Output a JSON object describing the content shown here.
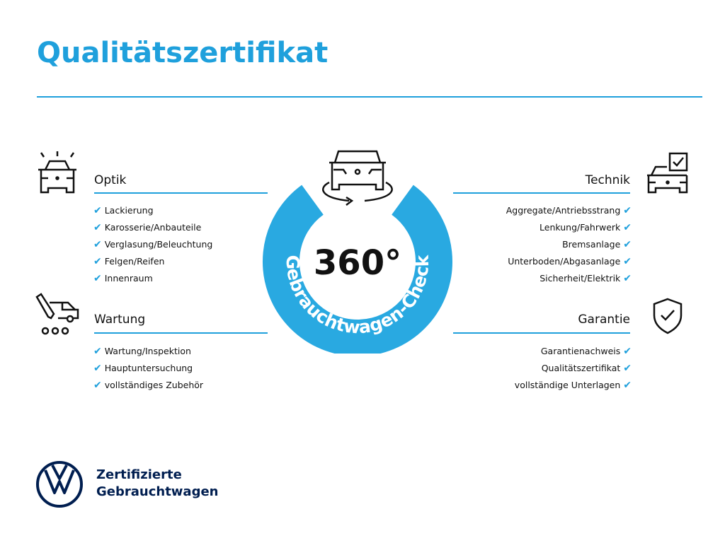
{
  "title": "Qualitätszertifikat",
  "colors": {
    "accent": "#1fa0dc",
    "brand_dark": "#001e50"
  },
  "center": {
    "number": "360°",
    "ring_text": "Gebrauchtwagen-Check",
    "icon": "car-rotate-icon"
  },
  "sections": {
    "optik": {
      "heading": "Optik",
      "icon": "car-lights-icon",
      "items": [
        "Lackierung",
        "Karosserie/Anbauteile",
        "Verglasung/Beleuchtung",
        "Felgen/Reifen",
        "Innenraum"
      ]
    },
    "wartung": {
      "heading": "Wartung",
      "icon": "service-van-tool-icon",
      "items": [
        "Wartung/Inspektion",
        "Hauptuntersuchung",
        "vollständiges Zubehör"
      ]
    },
    "technik": {
      "heading": "Technik",
      "icon": "car-checkbox-icon",
      "items": [
        "Aggregate/Antriebsstrang",
        "Lenkung/Fahrwerk",
        "Bremsanlage",
        "Unterboden/Abgasanlage",
        "Sicherheit/Elektrik"
      ]
    },
    "garantie": {
      "heading": "Garantie",
      "icon": "shield-check-icon",
      "items": [
        "Garantienachweis",
        "Qualitätszertifikat",
        "vollständige Unterlagen"
      ]
    }
  },
  "check_glyph": "✔",
  "brand": {
    "line1": "Zertifizierte",
    "line2": "Gebrauchtwagen",
    "logo": "VW"
  }
}
